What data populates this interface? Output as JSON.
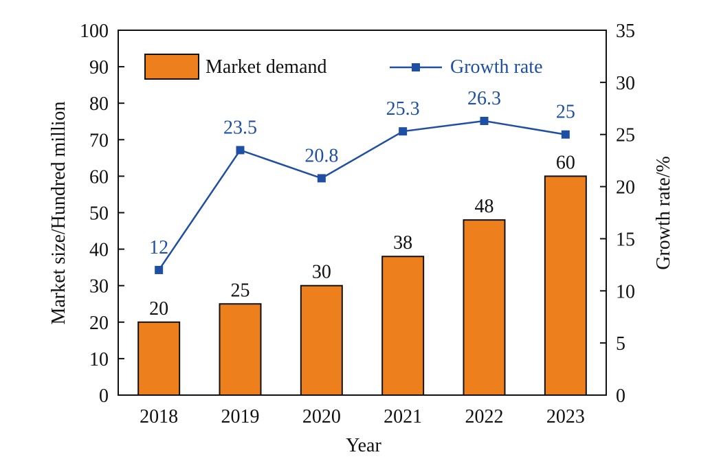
{
  "chart_data": {
    "type": "bar",
    "categories": [
      "2018",
      "2019",
      "2020",
      "2021",
      "2022",
      "2023"
    ],
    "xlabel": "Year",
    "ylabel": "Market size/Hundred million",
    "y2label": "Growth rate/%",
    "ylim": [
      0,
      100
    ],
    "y2lim": [
      0,
      35
    ],
    "yticks": [
      0,
      10,
      20,
      30,
      40,
      50,
      60,
      70,
      80,
      90,
      100
    ],
    "y2ticks": [
      0,
      5,
      10,
      15,
      20,
      25,
      30,
      35
    ],
    "legend_position": "top",
    "series": [
      {
        "name": "Market demand",
        "type": "bar",
        "axis": "left",
        "color": "#ee7f1d",
        "values": [
          20,
          25,
          30,
          38,
          48,
          60
        ],
        "labels": [
          "20",
          "25",
          "30",
          "38",
          "48",
          "60"
        ]
      },
      {
        "name": "Growth rate",
        "type": "line",
        "axis": "right",
        "color": "#1f4fa3",
        "marker": "square",
        "values": [
          12,
          23.5,
          20.8,
          25.3,
          26.3,
          25
        ],
        "labels": [
          "12",
          "23.5",
          "20.8",
          "25.3",
          "26.3",
          "25"
        ]
      }
    ]
  }
}
